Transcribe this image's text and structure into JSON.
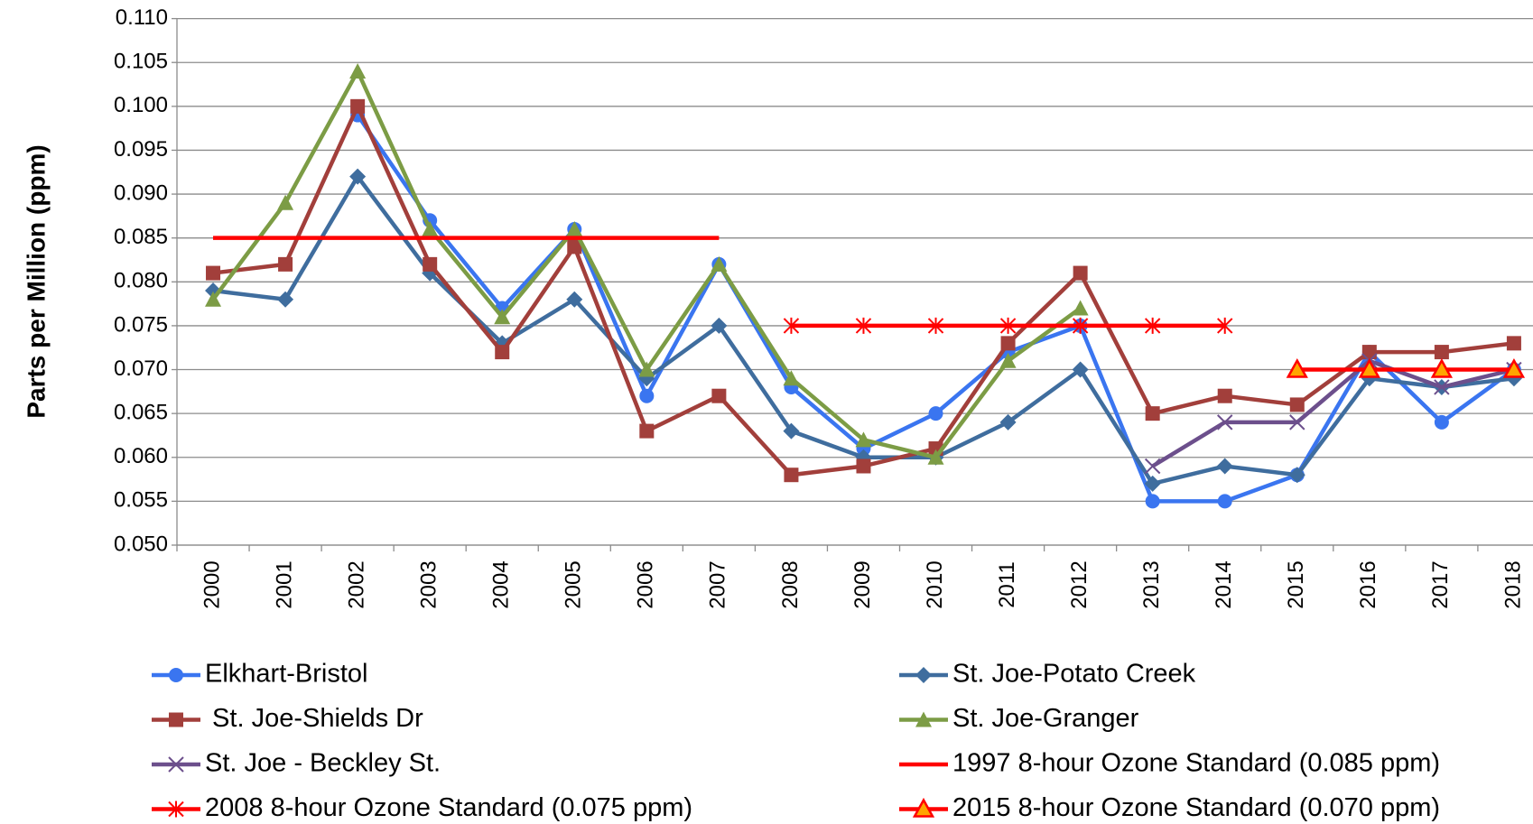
{
  "chart_data": {
    "type": "line",
    "y_label": "Parts per Million (ppm)",
    "categories": [
      "2000",
      "2001",
      "2002",
      "2003",
      "2004",
      "2005",
      "2006",
      "2007",
      "2008",
      "2009",
      "2010",
      "2011",
      "2012",
      "2013",
      "2014",
      "2015",
      "2016",
      "2017",
      "2018"
    ],
    "ylim": [
      0.05,
      0.11
    ],
    "yticks": [
      {
        "value": 0.05,
        "label": "0.050"
      },
      {
        "value": 0.055,
        "label": "0.055"
      },
      {
        "value": 0.06,
        "label": "0.060"
      },
      {
        "value": 0.065,
        "label": "0.065"
      },
      {
        "value": 0.07,
        "label": "0.070"
      },
      {
        "value": 0.075,
        "label": "0.075"
      },
      {
        "value": 0.08,
        "label": "0.080"
      },
      {
        "value": 0.085,
        "label": "0.085"
      },
      {
        "value": 0.09,
        "label": "0.090"
      },
      {
        "value": 0.095,
        "label": "0.095"
      },
      {
        "value": 0.1,
        "label": "0.100"
      },
      {
        "value": 0.105,
        "label": "0.105"
      },
      {
        "value": 0.11,
        "label": "0.110"
      }
    ],
    "grid": true,
    "series": [
      {
        "name": "Elkhart-Bristol",
        "color": "#3a75f0",
        "marker": "circle",
        "values": [
          null,
          null,
          0.099,
          0.087,
          0.077,
          0.086,
          0.067,
          0.082,
          0.068,
          0.061,
          0.065,
          0.072,
          0.075,
          0.055,
          0.055,
          0.058,
          0.072,
          0.064,
          0.07
        ]
      },
      {
        "name": "St. Joe-Potato Creek",
        "color": "#3f6d9e",
        "marker": "diamond",
        "values": [
          0.079,
          0.078,
          0.092,
          0.081,
          0.073,
          0.078,
          0.069,
          0.075,
          0.063,
          0.06,
          0.06,
          0.064,
          0.07,
          0.057,
          0.059,
          0.058,
          0.069,
          0.068,
          0.069
        ]
      },
      {
        "name": " St. Joe-Shields Dr",
        "color": "#a23f3b",
        "marker": "square",
        "values": [
          0.081,
          0.082,
          0.1,
          0.082,
          0.072,
          0.084,
          0.063,
          0.067,
          0.058,
          0.059,
          0.061,
          0.073,
          0.081,
          0.065,
          0.067,
          0.066,
          0.072,
          0.072,
          0.073
        ]
      },
      {
        "name": "St. Joe-Granger",
        "color": "#7c9c45",
        "marker": "triangle",
        "values": [
          0.078,
          0.089,
          0.104,
          0.086,
          0.076,
          0.086,
          0.07,
          0.082,
          0.069,
          0.062,
          0.06,
          0.071,
          0.077,
          null,
          null,
          null,
          null,
          null,
          null
        ]
      },
      {
        "name": "St. Joe - Beckley St.",
        "color": "#6c4f8c",
        "marker": "x",
        "values": [
          null,
          null,
          null,
          null,
          null,
          null,
          null,
          null,
          null,
          null,
          null,
          null,
          null,
          0.059,
          0.064,
          0.064,
          0.071,
          0.068,
          0.07
        ]
      },
      {
        "name": "1997 8-hour Ozone Standard (0.085 ppm)",
        "color": "#ff0000",
        "marker": "none",
        "values": [
          0.085,
          0.085,
          0.085,
          0.085,
          0.085,
          0.085,
          0.085,
          0.085,
          null,
          null,
          null,
          null,
          null,
          null,
          null,
          null,
          null,
          null,
          null
        ]
      },
      {
        "name": "2008 8-hour Ozone Standard (0.075 ppm)",
        "color": "#ff0000",
        "marker": "star",
        "values": [
          null,
          null,
          null,
          null,
          null,
          null,
          null,
          null,
          0.075,
          0.075,
          0.075,
          0.075,
          0.075,
          0.075,
          0.075,
          null,
          null,
          null,
          null
        ]
      },
      {
        "name": "2015 8-hour Ozone Standard (0.070 ppm)",
        "color": "#ff0000",
        "marker": "triangle-fill",
        "values": [
          null,
          null,
          null,
          null,
          null,
          null,
          null,
          null,
          null,
          null,
          null,
          null,
          null,
          null,
          null,
          0.07,
          0.07,
          0.07,
          0.07
        ]
      }
    ]
  }
}
